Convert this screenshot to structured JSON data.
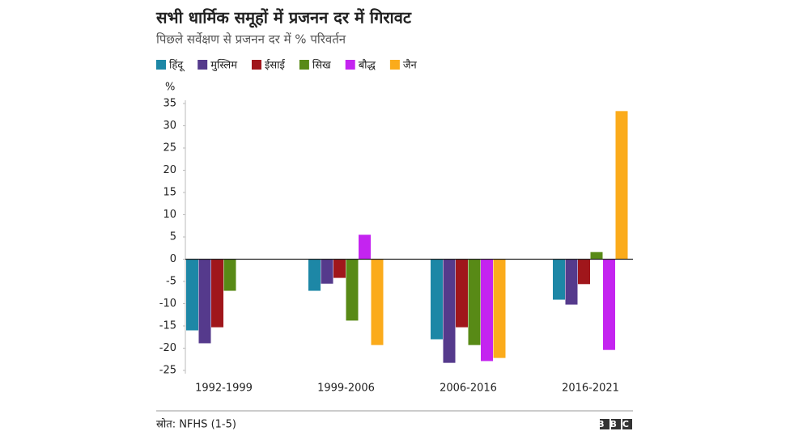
{
  "chart_data": {
    "type": "bar",
    "title": "सभी धार्मिक समूहों में प्रजनन दर में गिरावट",
    "subtitle": "पिछले सर्वेक्षण से प्रजनन दर में % परिवर्तन",
    "y_label": "%",
    "categories": [
      "1992-1999",
      "1999-2006",
      "2006-2016",
      "2016-2021"
    ],
    "series": [
      {
        "name": "हिंदू",
        "color": "#1d87a6",
        "values": [
          -16.0,
          -7.1,
          -18.0,
          -9.1
        ]
      },
      {
        "name": "मुस्लिम",
        "color": "#553a8c",
        "values": [
          -18.9,
          -5.5,
          -23.3,
          -10.2
        ]
      },
      {
        "name": "ईसाई",
        "color": "#a0161b",
        "values": [
          -15.3,
          -4.2,
          -15.3,
          -5.6
        ]
      },
      {
        "name": "सिख",
        "color": "#588a16",
        "values": [
          -7.1,
          -13.8,
          -19.3,
          1.6
        ]
      },
      {
        "name": "बौद्ध",
        "color": "#c424f0",
        "values": [
          null,
          5.5,
          -22.9,
          -20.4
        ]
      },
      {
        "name": "जैन",
        "color": "#fbab1b",
        "values": [
          null,
          -19.3,
          -22.2,
          33.3
        ]
      }
    ],
    "ylim": [
      -25,
      35
    ],
    "yticks": [
      -25,
      -20,
      -15,
      -10,
      -5,
      0,
      5,
      10,
      15,
      20,
      25,
      30,
      35
    ],
    "source": "स्रोत: NFHS (1-5)",
    "logo": "BBC"
  }
}
